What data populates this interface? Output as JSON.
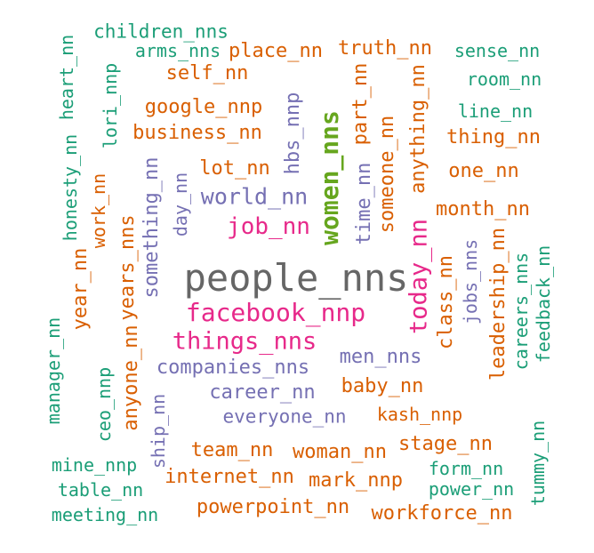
{
  "palette": {
    "green": "#1b9e77",
    "orange": "#d95f02",
    "purple": "#7570b3",
    "pink": "#e7298a",
    "olive": "#66a61e",
    "gray": "#666666"
  },
  "words": [
    {
      "text": "people_nns",
      "color": "gray"
    },
    {
      "text": "facebook_nnp",
      "color": "pink"
    },
    {
      "text": "things_nns",
      "color": "pink"
    },
    {
      "text": "women_nns",
      "color": "olive"
    },
    {
      "text": "job_nn",
      "color": "pink"
    },
    {
      "text": "today_nn",
      "color": "pink"
    },
    {
      "text": "world_nn",
      "color": "purple"
    },
    {
      "text": "companies_nns",
      "color": "purple"
    },
    {
      "text": "career_nn",
      "color": "purple"
    },
    {
      "text": "everyone_nn",
      "color": "purple"
    },
    {
      "text": "men_nns",
      "color": "purple"
    },
    {
      "text": "hbs_nnp",
      "color": "purple"
    },
    {
      "text": "time_nn",
      "color": "purple"
    },
    {
      "text": "something_nn",
      "color": "purple"
    },
    {
      "text": "day_nn",
      "color": "purple"
    },
    {
      "text": "children_nns",
      "color": "green"
    },
    {
      "text": "arms_nns",
      "color": "green"
    },
    {
      "text": "place_nn",
      "color": "orange"
    },
    {
      "text": "truth_nn",
      "color": "orange"
    },
    {
      "text": "sense_nn",
      "color": "green"
    },
    {
      "text": "room_nn",
      "color": "green"
    },
    {
      "text": "self_nn",
      "color": "orange"
    },
    {
      "text": "google_nnp",
      "color": "orange"
    },
    {
      "text": "business_nn",
      "color": "orange"
    },
    {
      "text": "lot_nn",
      "color": "orange"
    },
    {
      "text": "line_nn",
      "color": "green"
    },
    {
      "text": "thing_nn",
      "color": "orange"
    },
    {
      "text": "one_nn",
      "color": "orange"
    },
    {
      "text": "month_nn",
      "color": "orange"
    },
    {
      "text": "heart_nn",
      "color": "green"
    },
    {
      "text": "lori_nnp",
      "color": "green"
    },
    {
      "text": "honesty_nn",
      "color": "green"
    },
    {
      "text": "work_nn",
      "color": "orange"
    },
    {
      "text": "years_nns",
      "color": "orange"
    },
    {
      "text": "part_nn",
      "color": "orange"
    },
    {
      "text": "someone_nn",
      "color": "orange"
    },
    {
      "text": "anything_nn",
      "color": "orange"
    },
    {
      "text": "class_nn",
      "color": "orange"
    },
    {
      "text": "jobs_nns",
      "color": "purple"
    },
    {
      "text": "leadership_nn",
      "color": "orange"
    },
    {
      "text": "careers_nns",
      "color": "green"
    },
    {
      "text": "feedback_nn",
      "color": "green"
    },
    {
      "text": "manager_nn",
      "color": "green"
    },
    {
      "text": "year_nn",
      "color": "orange"
    },
    {
      "text": "anyone_nn",
      "color": "orange"
    },
    {
      "text": "ceo_nnp",
      "color": "green"
    },
    {
      "text": "ship_nn",
      "color": "purple"
    },
    {
      "text": "baby_nn",
      "color": "orange"
    },
    {
      "text": "kash_nnp",
      "color": "orange"
    },
    {
      "text": "stage_nn",
      "color": "orange"
    },
    {
      "text": "form_nn",
      "color": "green"
    },
    {
      "text": "power_nn",
      "color": "green"
    },
    {
      "text": "tummy_nn",
      "color": "green"
    },
    {
      "text": "team_nn",
      "color": "orange"
    },
    {
      "text": "woman_nn",
      "color": "orange"
    },
    {
      "text": "internet_nn",
      "color": "orange"
    },
    {
      "text": "mark_nnp",
      "color": "orange"
    },
    {
      "text": "mine_nnp",
      "color": "green"
    },
    {
      "text": "table_nn",
      "color": "green"
    },
    {
      "text": "meeting_nn",
      "color": "green"
    },
    {
      "text": "powerpoint_nn",
      "color": "orange"
    },
    {
      "text": "workforce_nn",
      "color": "orange"
    }
  ]
}
